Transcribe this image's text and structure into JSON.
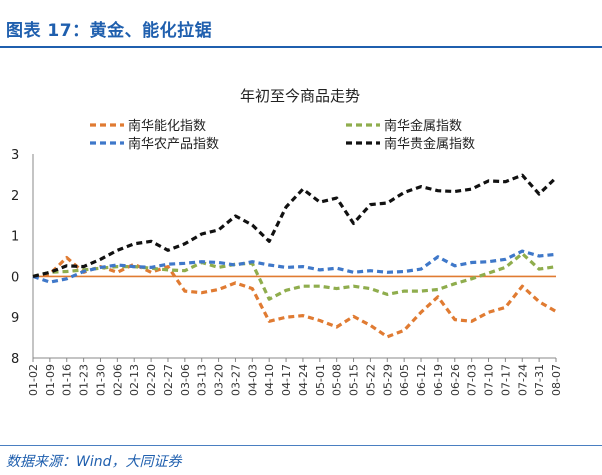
{
  "figure": {
    "label": "图表 17：黄金、能化拉锯",
    "source": "数据来源：Wind，大同证券"
  },
  "chart_data": {
    "type": "line",
    "title": "年初至今商品走势",
    "y_tick_labels": [
      "8",
      "9",
      "0",
      "1",
      "2",
      "3"
    ],
    "ylim": [
      -2,
      3
    ],
    "baseline": 0,
    "legend_placement": "top",
    "x_tick_labels": [
      "01-02",
      "01-09",
      "01-16",
      "01-23",
      "01-30",
      "02-06",
      "02-13",
      "02-20",
      "02-27",
      "03-06",
      "03-13",
      "03-20",
      "03-27",
      "04-03",
      "04-10",
      "04-17",
      "04-24",
      "05-01",
      "05-08",
      "05-15",
      "05-22",
      "05-29",
      "06-05",
      "06-12",
      "06-19",
      "06-26",
      "07-03",
      "07-10",
      "07-17",
      "07-24",
      "07-31",
      "08-07"
    ],
    "series": [
      {
        "name": "南华能化指数",
        "color": "#e07b32",
        "values": [
          0.0,
          0.06,
          0.46,
          0.1,
          0.24,
          0.1,
          0.3,
          0.1,
          0.24,
          -0.36,
          -0.4,
          -0.32,
          -0.16,
          -0.3,
          -1.1,
          -1.0,
          -0.96,
          -1.08,
          -1.24,
          -0.98,
          -1.2,
          -1.48,
          -1.32,
          -0.88,
          -0.5,
          -1.06,
          -1.1,
          -0.88,
          -0.76,
          -0.24,
          -0.62,
          -0.86
        ]
      },
      {
        "name": "南华金属指数",
        "color": "#8fad4d",
        "values": [
          0.0,
          0.1,
          0.12,
          0.16,
          0.2,
          0.24,
          0.24,
          0.2,
          0.16,
          0.14,
          0.34,
          0.22,
          0.3,
          0.32,
          -0.56,
          -0.34,
          -0.24,
          -0.24,
          -0.3,
          -0.24,
          -0.3,
          -0.44,
          -0.36,
          -0.36,
          -0.32,
          -0.18,
          -0.06,
          0.08,
          0.22,
          0.56,
          0.18,
          0.24
        ]
      },
      {
        "name": "南华农产品指数",
        "color": "#3f78c9",
        "values": [
          0.0,
          -0.14,
          -0.06,
          0.12,
          0.22,
          0.28,
          0.24,
          0.22,
          0.3,
          0.32,
          0.36,
          0.34,
          0.28,
          0.36,
          0.28,
          0.22,
          0.24,
          0.16,
          0.2,
          0.1,
          0.14,
          0.1,
          0.12,
          0.18,
          0.48,
          0.26,
          0.34,
          0.36,
          0.42,
          0.62,
          0.5,
          0.54
        ]
      },
      {
        "name": "南华贵金属指数",
        "color": "#111111",
        "values": [
          0.0,
          0.1,
          0.26,
          0.24,
          0.42,
          0.64,
          0.8,
          0.86,
          0.64,
          0.8,
          1.04,
          1.14,
          1.48,
          1.26,
          0.86,
          1.7,
          2.14,
          1.82,
          1.92,
          1.3,
          1.76,
          1.8,
          2.06,
          2.2,
          2.1,
          2.08,
          2.14,
          2.34,
          2.32,
          2.48,
          2.02,
          2.42
        ]
      }
    ]
  }
}
